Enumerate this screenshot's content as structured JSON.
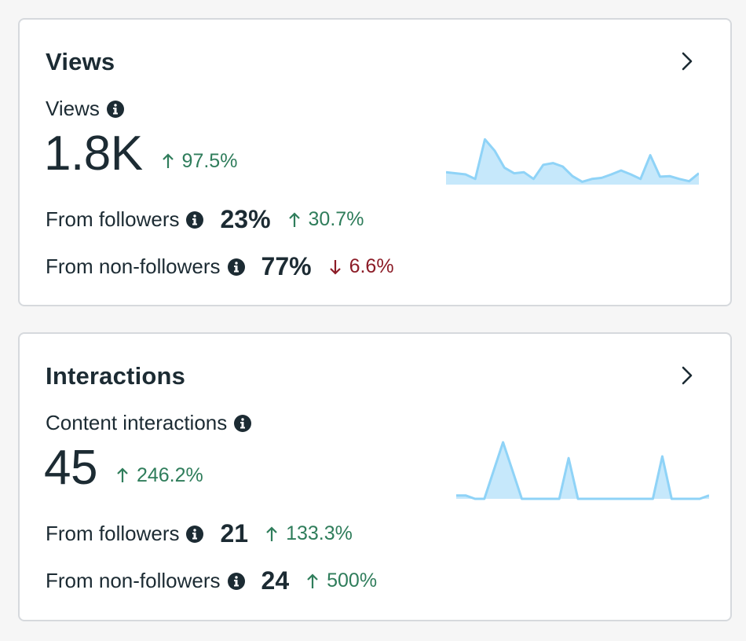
{
  "colors": {
    "accent_up": "#2f7d5b",
    "accent_down": "#8c1c27",
    "sparkline_stroke": "#8fd3f7",
    "sparkline_fill": "#c6e8fb",
    "card_border": "#d6d9dd"
  },
  "views": {
    "title": "Views",
    "metric_label": "Views",
    "value": "1.8K",
    "change": "97.5%",
    "change_direction": "up",
    "followers": {
      "label": "From followers",
      "value": "23%",
      "change": "30.7%",
      "change_direction": "up"
    },
    "non_followers": {
      "label": "From non-followers",
      "value": "77%",
      "change": "6.6%",
      "change_direction": "down"
    },
    "sparkline": [
      0.22,
      0.2,
      0.18,
      0.1,
      0.8,
      0.6,
      0.3,
      0.2,
      0.22,
      0.1,
      0.35,
      0.38,
      0.32,
      0.15,
      0.05,
      0.1,
      0.12,
      0.18,
      0.25,
      0.18,
      0.1,
      0.52,
      0.14,
      0.15,
      0.1,
      0.06,
      0.2
    ]
  },
  "interactions": {
    "title": "Interactions",
    "metric_label": "Content interactions",
    "value": "45",
    "change": "246.2%",
    "change_direction": "up",
    "followers": {
      "label": "From followers",
      "value": "21",
      "change": "133.3%",
      "change_direction": "up"
    },
    "non_followers": {
      "label": "From non-followers",
      "value": "24",
      "change": "500%",
      "change_direction": "up"
    },
    "sparkline": [
      0.06,
      0.06,
      0.0,
      0.0,
      0.5,
      1.0,
      0.5,
      0.0,
      0.0,
      0.0,
      0.0,
      0.0,
      0.72,
      0.0,
      0.0,
      0.0,
      0.0,
      0.0,
      0.0,
      0.0,
      0.0,
      0.0,
      0.75,
      0.0,
      0.0,
      0.0,
      0.0,
      0.06
    ]
  }
}
